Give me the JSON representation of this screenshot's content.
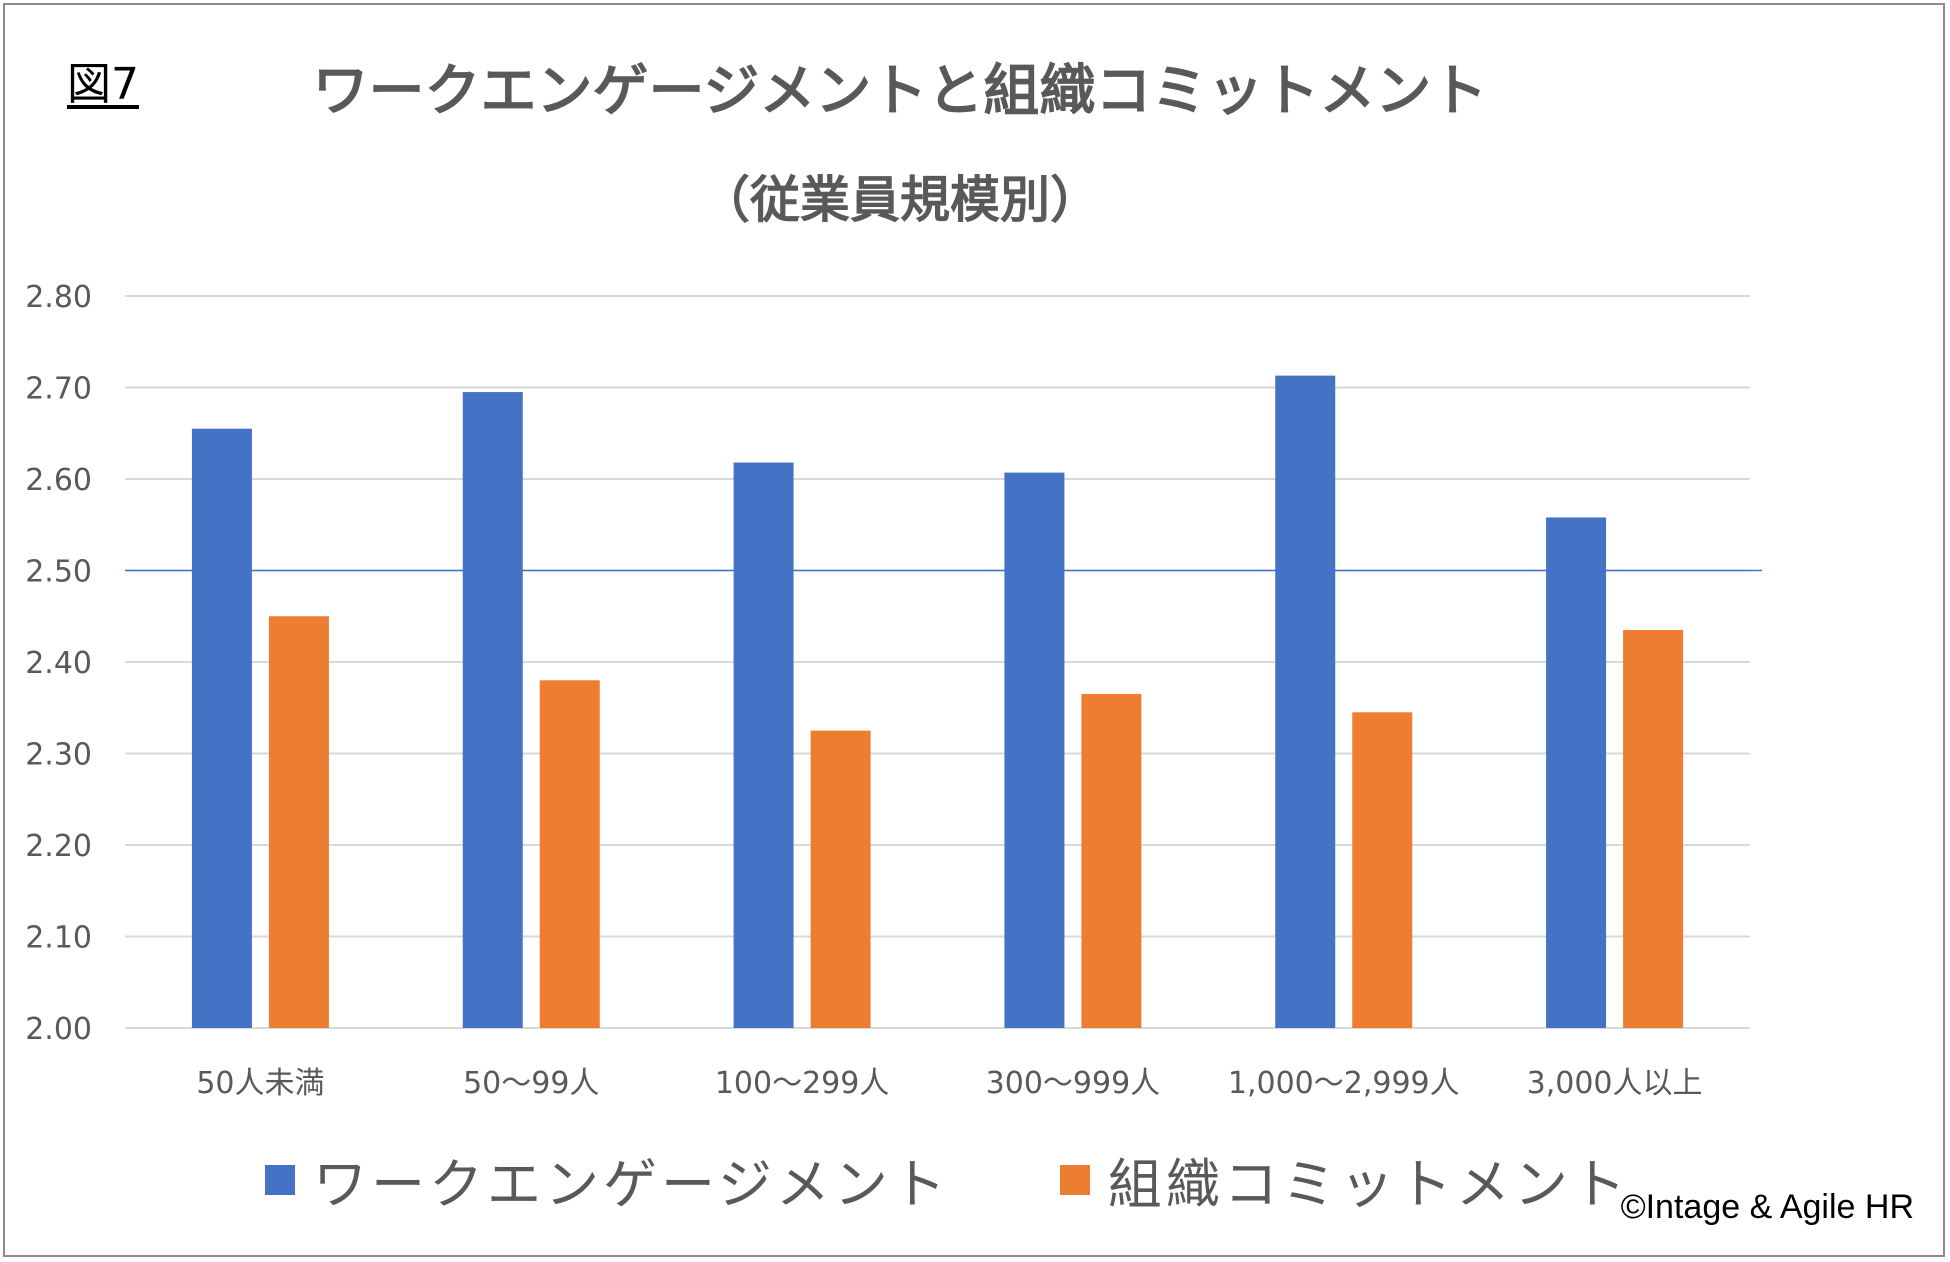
{
  "figure_label": "図7",
  "title": "ワークエンゲージメントと組織コミットメント",
  "subtitle": "（従業員規模別）",
  "copyright": "©Intage & Agile HR",
  "colors": {
    "work_engagement": "#4472C4",
    "commitment": "#ED7D31",
    "reference_line": "#4472C4",
    "grid": "#d9d9d9"
  },
  "chart_data": {
    "type": "bar",
    "categories": [
      "50人未満",
      "50〜99人",
      "100〜299人",
      "300〜999人",
      "1,000〜2,999人",
      "3,000人以上"
    ],
    "series": [
      {
        "name": "ワークエンゲージメント",
        "values": [
          2.655,
          2.695,
          2.618,
          2.607,
          2.713,
          2.558
        ]
      },
      {
        "name": "組織コミットメント",
        "values": [
          2.45,
          2.38,
          2.325,
          2.365,
          2.345,
          2.435
        ]
      }
    ],
    "ylim": [
      2.0,
      2.8
    ],
    "yticks": [
      "2.00",
      "2.10",
      "2.20",
      "2.30",
      "2.40",
      "2.50",
      "2.60",
      "2.70",
      "2.80"
    ],
    "reference_line": 2.5,
    "legend_position": "bottom",
    "grid": true
  }
}
